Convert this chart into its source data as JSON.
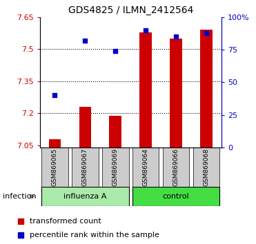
{
  "title": "GDS4825 / ILMN_2412564",
  "samples": [
    "GSM869065",
    "GSM869067",
    "GSM869069",
    "GSM869064",
    "GSM869066",
    "GSM869068"
  ],
  "group_labels": [
    "influenza A",
    "control"
  ],
  "group_split": 3,
  "bar_color": "#cc0000",
  "dot_color": "#0000cc",
  "transformed_counts": [
    7.08,
    7.23,
    7.19,
    7.58,
    7.55,
    7.59
  ],
  "percentile_ranks_pct": [
    40,
    82,
    74,
    90,
    85,
    88
  ],
  "ylim_left": [
    7.04,
    7.65
  ],
  "yticks_left": [
    7.05,
    7.2,
    7.35,
    7.5,
    7.65
  ],
  "ytick_labels_left": [
    "7.05",
    "7.2",
    "7.35",
    "7.5",
    "7.65"
  ],
  "ylim_right": [
    0,
    100
  ],
  "yticks_right": [
    0,
    25,
    50,
    75,
    100
  ],
  "ytick_labels_right": [
    "0",
    "25",
    "50",
    "75",
    "100%"
  ],
  "left_tick_color": "#cc0000",
  "right_tick_color": "#0000cc",
  "grid_lines": [
    7.2,
    7.35,
    7.5
  ],
  "bar_baseline": 7.04,
  "sample_bg_color": "#cccccc",
  "influenza_color": "#aaeaaa",
  "control_color": "#44dd44",
  "infection_label": "infection",
  "legend_items": [
    "transformed count",
    "percentile rank within the sample"
  ],
  "figsize": [
    3.71,
    3.54
  ],
  "dpi": 100
}
